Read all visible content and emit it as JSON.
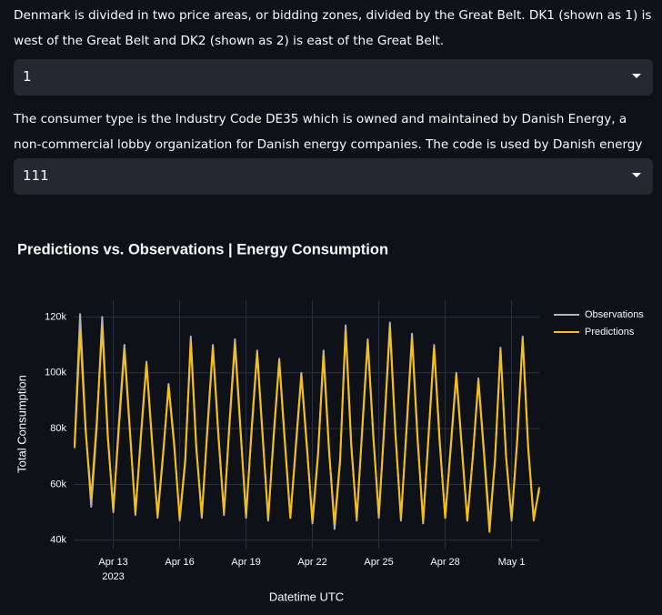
{
  "intro": {
    "zone_text": "Denmark is divided in two price areas, or bidding zones, divided by the Great Belt. DK1 (shown as 1) is west of the Great Belt and DK2 (shown as 2) is east of the Great Belt.",
    "zone_select": "1",
    "consumer_text": "The consumer type is the Industry Code DE35 which is owned and maintained by Danish Energy, a non-commercial lobby organization for Danish energy companies. The code is used by Danish energy companies.",
    "consumer_select": "111"
  },
  "chart_data": {
    "type": "line",
    "title": "Predictions vs. Observations | Energy Consumption",
    "x_label": "Datetime UTC",
    "y_label": "Total Consumption",
    "grid": true,
    "legend": "right",
    "x": [
      "2023-04-11 06:00",
      "2023-04-11 12:00",
      "2023-04-11 18:00",
      "2023-04-12 00:00",
      "2023-04-12 06:00",
      "2023-04-12 12:00",
      "2023-04-12 18:00",
      "2023-04-13 00:00",
      "2023-04-13 06:00",
      "2023-04-13 12:00",
      "2023-04-13 18:00",
      "2023-04-14 00:00",
      "2023-04-14 06:00",
      "2023-04-14 12:00",
      "2023-04-14 18:00",
      "2023-04-15 00:00",
      "2023-04-15 06:00",
      "2023-04-15 12:00",
      "2023-04-15 18:00",
      "2023-04-16 00:00",
      "2023-04-16 06:00",
      "2023-04-16 12:00",
      "2023-04-16 18:00",
      "2023-04-17 00:00",
      "2023-04-17 06:00",
      "2023-04-17 12:00",
      "2023-04-17 18:00",
      "2023-04-18 00:00",
      "2023-04-18 06:00",
      "2023-04-18 12:00",
      "2023-04-18 18:00",
      "2023-04-19 00:00",
      "2023-04-19 06:00",
      "2023-04-19 12:00",
      "2023-04-19 18:00",
      "2023-04-20 00:00",
      "2023-04-20 06:00",
      "2023-04-20 12:00",
      "2023-04-20 18:00",
      "2023-04-21 00:00",
      "2023-04-21 06:00",
      "2023-04-21 12:00",
      "2023-04-21 18:00",
      "2023-04-22 00:00",
      "2023-04-22 06:00",
      "2023-04-22 12:00",
      "2023-04-22 18:00",
      "2023-04-23 00:00",
      "2023-04-23 06:00",
      "2023-04-23 12:00",
      "2023-04-23 18:00",
      "2023-04-24 00:00",
      "2023-04-24 06:00",
      "2023-04-24 12:00",
      "2023-04-24 18:00",
      "2023-04-25 00:00",
      "2023-04-25 06:00",
      "2023-04-25 12:00",
      "2023-04-25 18:00",
      "2023-04-26 00:00",
      "2023-04-26 06:00",
      "2023-04-26 12:00",
      "2023-04-26 18:00",
      "2023-04-27 00:00",
      "2023-04-27 06:00",
      "2023-04-27 12:00",
      "2023-04-27 18:00",
      "2023-04-28 00:00",
      "2023-04-28 06:00",
      "2023-04-28 12:00",
      "2023-04-28 18:00",
      "2023-04-29 00:00",
      "2023-04-29 06:00",
      "2023-04-29 12:00",
      "2023-04-29 18:00",
      "2023-04-30 00:00",
      "2023-04-30 06:00",
      "2023-04-30 12:00",
      "2023-04-30 18:00",
      "2023-05-01 00:00",
      "2023-05-01 06:00",
      "2023-05-01 12:00",
      "2023-05-01 18:00",
      "2023-05-02 00:00",
      "2023-05-02 06:00"
    ],
    "series": [
      {
        "name": "Observations",
        "color": "#b9afb7",
        "values": [
          74000,
          121000,
          80000,
          52000,
          80000,
          120000,
          78000,
          50000,
          82000,
          110000,
          80000,
          49000,
          78000,
          104000,
          76000,
          48000,
          70000,
          96000,
          75000,
          47000,
          68000,
          113000,
          74000,
          48000,
          80000,
          110000,
          78000,
          49000,
          82000,
          112000,
          80000,
          48000,
          80000,
          108000,
          78000,
          47000,
          78000,
          105000,
          76000,
          48000,
          74000,
          100000,
          74000,
          46000,
          70000,
          108000,
          73000,
          44000,
          68000,
          117000,
          75000,
          47000,
          80000,
          112000,
          78000,
          48000,
          82000,
          118000,
          79000,
          47000,
          80000,
          114000,
          77000,
          46000,
          78000,
          110000,
          76000,
          48000,
          74000,
          100000,
          74000,
          47000,
          70000,
          98000,
          72000,
          46000,
          68000,
          109000,
          70000,
          47000,
          76000,
          113000,
          74000,
          48000,
          58000
        ]
      },
      {
        "name": "Predictions",
        "color": "#f5bf14",
        "values": [
          73000,
          115000,
          79000,
          55000,
          82000,
          116000,
          77000,
          51000,
          80000,
          108000,
          79000,
          50000,
          77000,
          103000,
          75000,
          49000,
          71000,
          95000,
          74000,
          48000,
          69000,
          111000,
          73000,
          49000,
          79000,
          109000,
          77000,
          50000,
          81000,
          110000,
          79000,
          49000,
          79000,
          107000,
          77000,
          48000,
          77000,
          104000,
          75000,
          48000,
          73000,
          99000,
          73000,
          47000,
          71000,
          106000,
          72000,
          46000,
          69000,
          115000,
          74000,
          48000,
          79000,
          111000,
          77000,
          49000,
          81000,
          116000,
          78000,
          48000,
          79000,
          112000,
          76000,
          47000,
          77000,
          109000,
          75000,
          48000,
          73000,
          99000,
          73000,
          47000,
          70000,
          97000,
          71000,
          43000,
          69000,
          108000,
          70000,
          48000,
          75000,
          112000,
          73000,
          47000,
          59000
        ]
      }
    ],
    "xlim": [
      "2023-04-11 06:00",
      "2023-05-02 06:00"
    ],
    "xticks": [
      {
        "value": "2023-04-13",
        "label": "Apr 13"
      },
      {
        "value": "2023-04-16",
        "label": "Apr 16"
      },
      {
        "value": "2023-04-19",
        "label": "Apr 19"
      },
      {
        "value": "2023-04-22",
        "label": "Apr 22"
      },
      {
        "value": "2023-04-25",
        "label": "Apr 25"
      },
      {
        "value": "2023-04-28",
        "label": "Apr 28"
      },
      {
        "value": "2023-05-01",
        "label": "May 1"
      }
    ],
    "x_tick_year": "2023",
    "ylim": [
      37000,
      126000
    ],
    "yticks": [
      {
        "value": 40000,
        "label": "40k"
      },
      {
        "value": 60000,
        "label": "60k"
      },
      {
        "value": 80000,
        "label": "80k"
      },
      {
        "value": 100000,
        "label": "100k"
      },
      {
        "value": 120000,
        "label": "120k"
      }
    ]
  }
}
